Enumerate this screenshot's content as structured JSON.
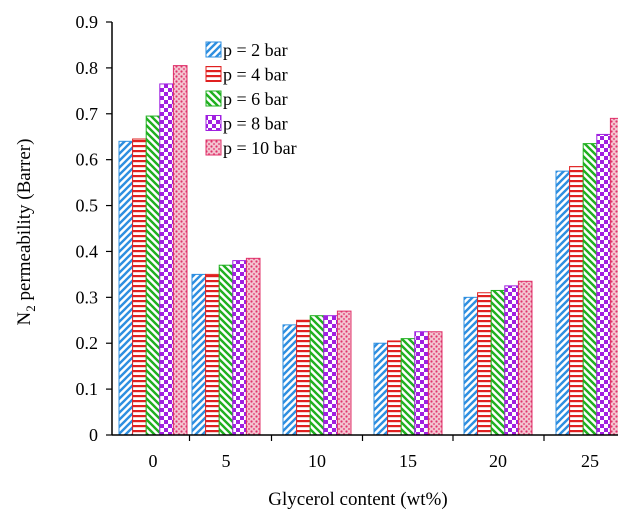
{
  "chart_data": {
    "type": "bar",
    "title": "",
    "xlabel": "Glycerol content (wt%)",
    "ylabel": "N2 permeability (Barrer)",
    "ylabel_main": "N",
    "ylabel_sub": "2",
    "ylabel_rest": " permeability (Barrer)",
    "categories": [
      "0",
      "5",
      "10",
      "15",
      "20",
      "25"
    ],
    "ylim": [
      0,
      0.9
    ],
    "yticks": [
      "0",
      "0.1",
      "0.2",
      "0.3",
      "0.4",
      "0.5",
      "0.6",
      "0.7",
      "0.8",
      "0.9"
    ],
    "grid": false,
    "legend_position": "top-left",
    "series": [
      {
        "name": "p = 2 bar",
        "color": "#2e8fe0",
        "pattern": "diagonal-stripes",
        "values": [
          0.64,
          0.35,
          0.24,
          0.2,
          0.3,
          0.575
        ]
      },
      {
        "name": "p = 4 bar",
        "color": "#e02020",
        "pattern": "horizontal-stripes",
        "values": [
          0.645,
          0.35,
          0.25,
          0.205,
          0.31,
          0.585
        ]
      },
      {
        "name": "p = 6 bar",
        "color": "#20b020",
        "pattern": "reverse-diagonal-stripes",
        "values": [
          0.695,
          0.37,
          0.26,
          0.21,
          0.315,
          0.635
        ]
      },
      {
        "name": "p = 8 bar",
        "color": "#a020e0",
        "pattern": "checkerboard",
        "values": [
          0.765,
          0.38,
          0.26,
          0.225,
          0.325,
          0.655
        ]
      },
      {
        "name": "p = 10 bar",
        "color": "#e0306a",
        "pattern": "dots",
        "values": [
          0.805,
          0.385,
          0.27,
          0.225,
          0.335,
          0.69
        ]
      }
    ]
  }
}
